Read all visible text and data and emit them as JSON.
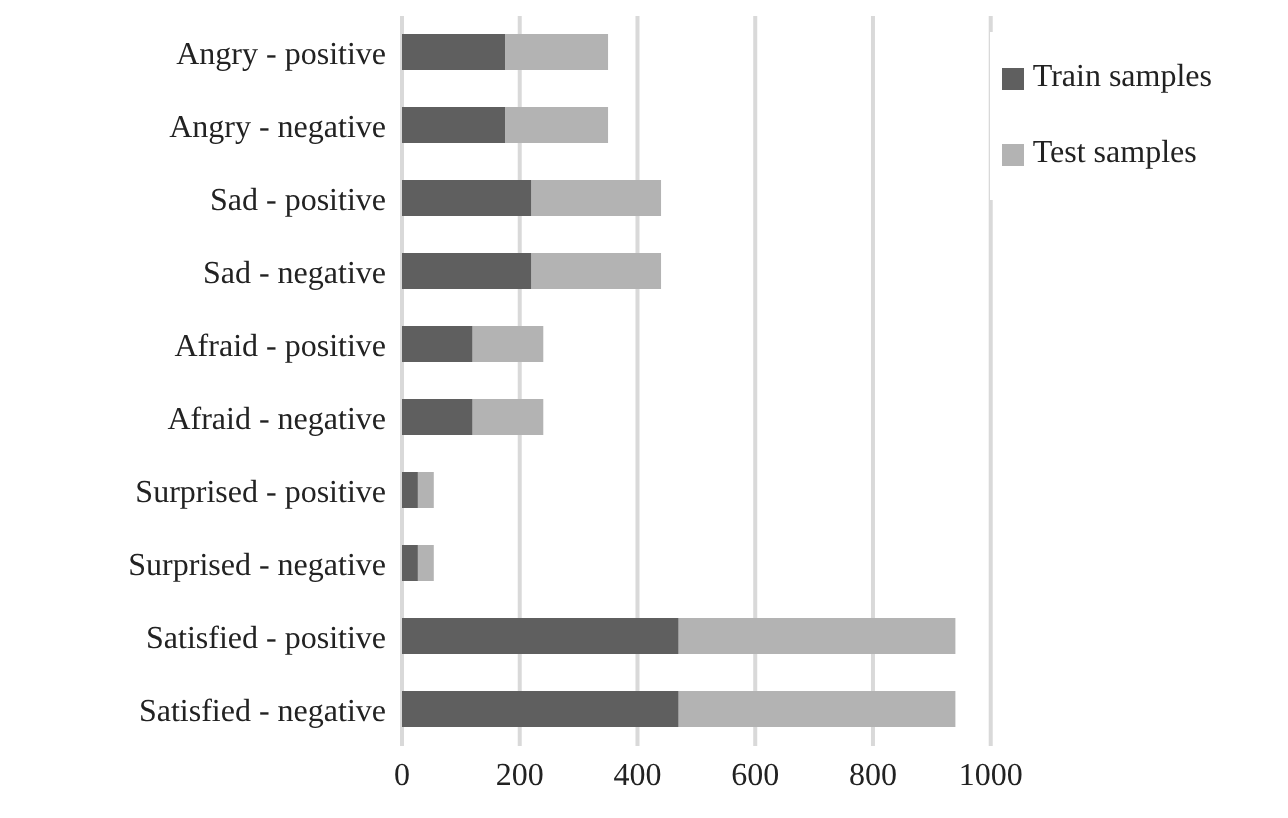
{
  "chart_data": {
    "type": "bar",
    "orientation": "horizontal",
    "stacked": true,
    "categories": [
      "Angry - positive",
      "Angry - negative",
      "Sad - positive",
      "Sad - negative",
      "Afraid - positive",
      "Afraid - negative",
      "Surprised - positive",
      "Surprised - negative",
      "Satisfied - positive",
      "Satisfied - negative"
    ],
    "series": [
      {
        "name": "Train samples",
        "color": "#5f5f5f",
        "values": [
          175,
          175,
          220,
          220,
          120,
          120,
          27,
          27,
          470,
          470
        ]
      },
      {
        "name": "Test samples",
        "color": "#b3b3b3",
        "values": [
          175,
          175,
          220,
          220,
          120,
          120,
          27,
          27,
          470,
          470
        ]
      }
    ],
    "xlim": [
      0,
      1000
    ],
    "xticks": [
      0,
      200,
      400,
      600,
      800,
      1000
    ],
    "grid": "x",
    "legend": "top right"
  }
}
